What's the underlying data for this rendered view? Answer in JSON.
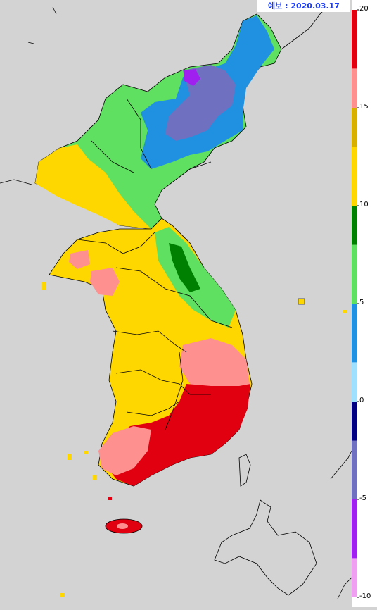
{
  "forecast_label": "예보 : 2020.03.17",
  "legend": {
    "ticks": [
      {
        "value": 20,
        "label": "20"
      },
      {
        "value": 15,
        "label": "15"
      },
      {
        "value": 10,
        "label": "10"
      },
      {
        "value": 5,
        "label": "5"
      },
      {
        "value": 0,
        "label": "0"
      },
      {
        "value": -5,
        "label": "-5"
      },
      {
        "value": -10,
        "label": "-10"
      }
    ],
    "range": [
      -10,
      20
    ],
    "colors": [
      {
        "from": -10,
        "to": -8,
        "color": "#f0a0f0"
      },
      {
        "from": -8,
        "to": -5,
        "color": "#a020f0"
      },
      {
        "from": -5,
        "to": -2,
        "color": "#7070c0"
      },
      {
        "from": -2,
        "to": 0,
        "color": "#000080"
      },
      {
        "from": 0,
        "to": 2,
        "color": "#a0e0ff"
      },
      {
        "from": 2,
        "to": 5,
        "color": "#2090e0"
      },
      {
        "from": 5,
        "to": 8,
        "color": "#60e060"
      },
      {
        "from": 8,
        "to": 10,
        "color": "#008000"
      },
      {
        "from": 10,
        "to": 13,
        "color": "#ffd700"
      },
      {
        "from": 13,
        "to": 15,
        "color": "#d8b000"
      },
      {
        "from": 15,
        "to": 17,
        "color": "#ff9090"
      },
      {
        "from": 17,
        "to": 20,
        "color": "#e00010"
      }
    ]
  },
  "colors": {
    "background": "#d3d3d3",
    "boundary": "#000000"
  }
}
